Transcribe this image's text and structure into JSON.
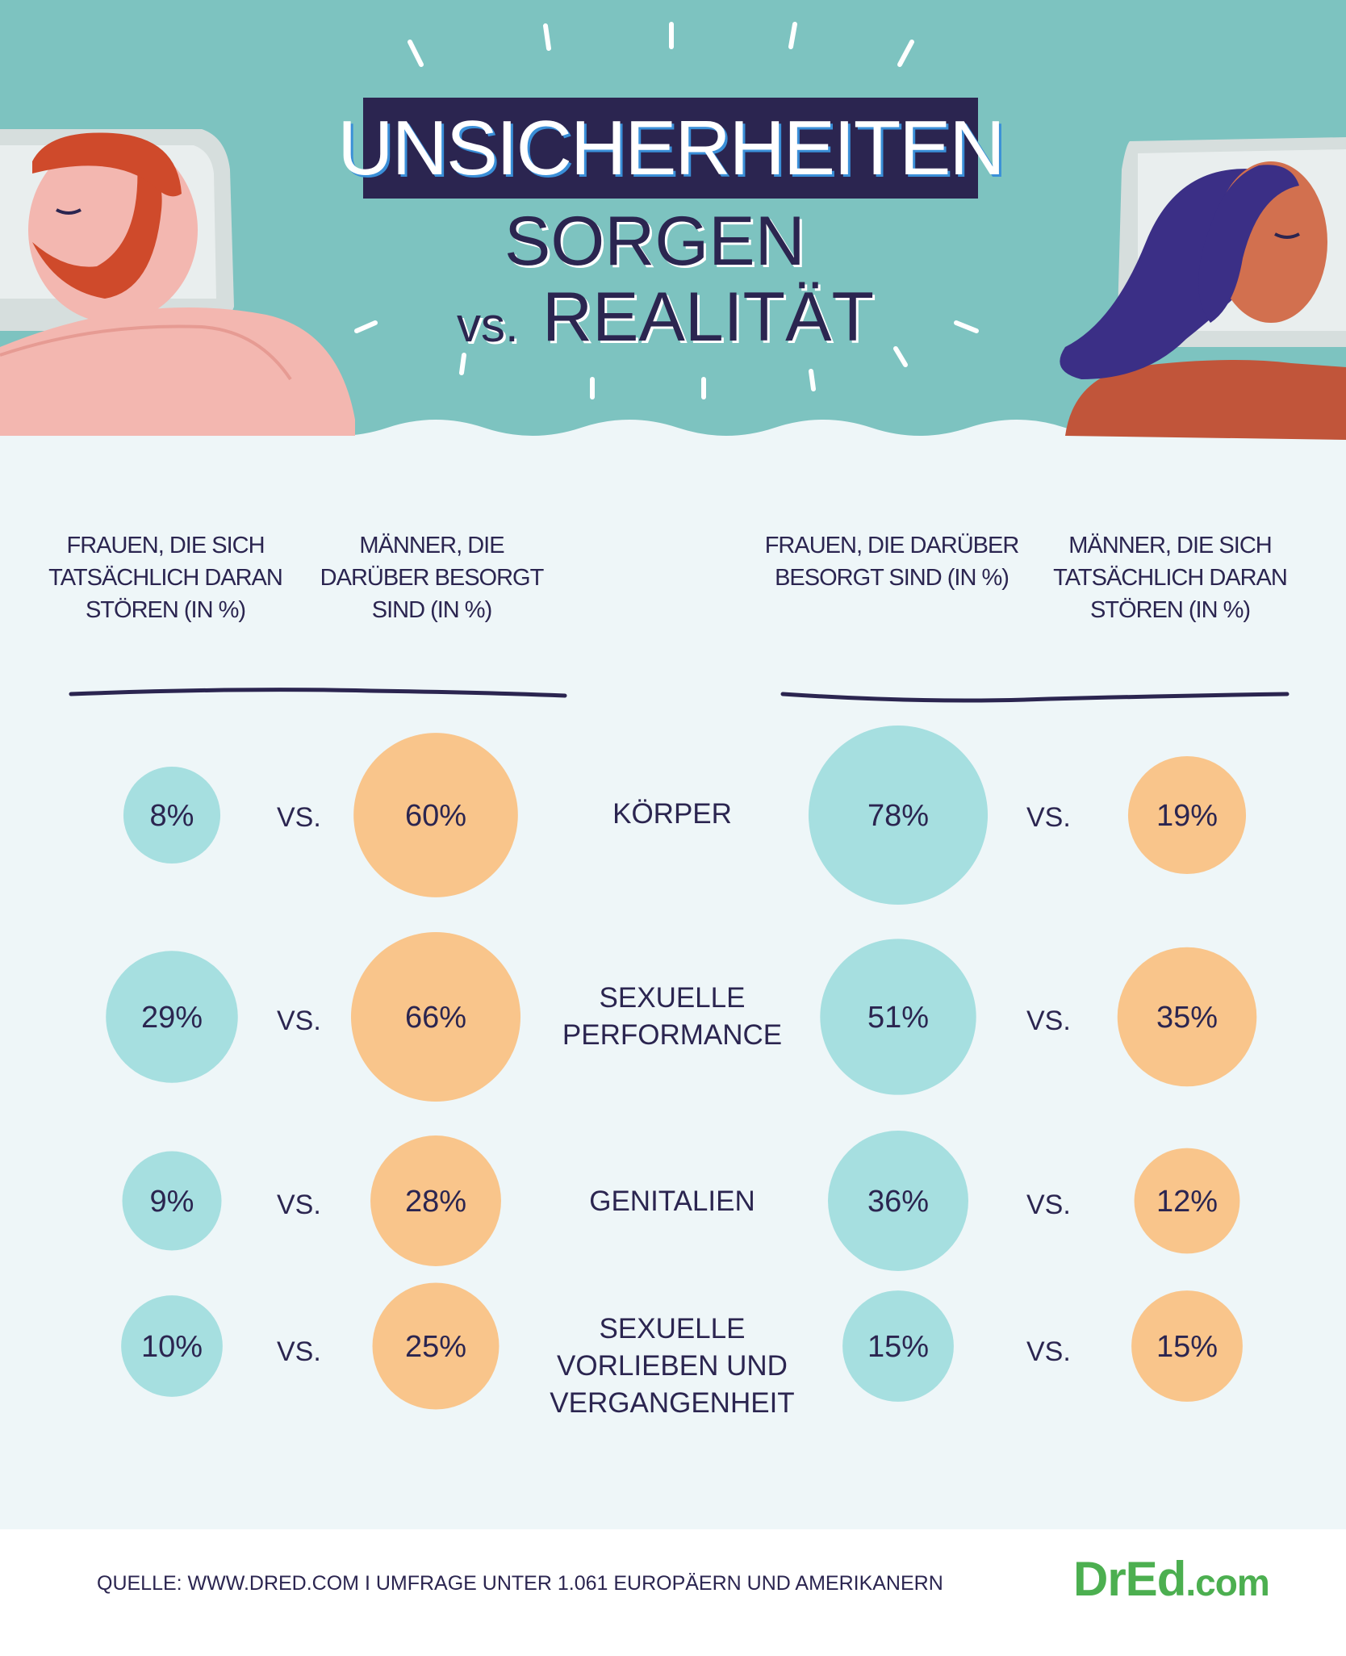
{
  "header": {
    "title": "UNSICHERHEITEN",
    "subtitle_line1": "SORGEN",
    "subtitle_vs": "vs.",
    "subtitle_line2": "REALITÄT"
  },
  "columns": {
    "left_actual": "FRAUEN, DIE SICH TATSÄCHLICH DARAN STÖREN (IN %)",
    "left_worried": "MÄNNER, DIE DARÜBER BESORGT SIND (IN %)",
    "right_worried": "FRAUEN, DIE DARÜBER BESORGT SIND (IN %)",
    "right_actual": "MÄNNER, DIE SICH TATSÄCHLICH DARAN STÖREN (IN %)"
  },
  "vs_label": "VS.",
  "chart_data": {
    "type": "bubble-comparison",
    "categories": [
      "KÖRPER",
      "SEXUELLE PERFORMANCE",
      "GENITALIEN",
      "SEXUELLE VORLIEBEN UND VERGANGENHEIT"
    ],
    "series": [
      {
        "name": "FRAUEN, DIE SICH TATSÄCHLICH DARAN STÖREN (IN %)",
        "values": [
          8,
          29,
          9,
          10
        ],
        "color": "#a6dfe0"
      },
      {
        "name": "MÄNNER, DIE DARÜBER BESORGT SIND (IN %)",
        "values": [
          60,
          66,
          28,
          25
        ],
        "color": "#f9c58b"
      },
      {
        "name": "FRAUEN, DIE DARÜBER BESORGT SIND (IN %)",
        "values": [
          78,
          51,
          36,
          15
        ],
        "color": "#a6dfe0"
      },
      {
        "name": "MÄNNER, DIE SICH TATSÄCHLICH DARAN STÖREN (IN %)",
        "values": [
          19,
          35,
          12,
          15
        ],
        "color": "#f9c58b"
      }
    ],
    "value_suffix": "%"
  },
  "footer": {
    "source": "QUELLE: WWW.DRED.COM I UMFRAGE UNTER 1.061 EUROPÄERN UND AMERIKANERN",
    "brand_main": "DrEd",
    "brand_suffix": ".com"
  },
  "colors": {
    "teal_header": "#7dc3c0",
    "panel": "#eef6f8",
    "navy": "#2b2550",
    "bubble_teal": "#a6dfe0",
    "bubble_orange": "#f9c58b",
    "brand_green": "#4caf50"
  }
}
